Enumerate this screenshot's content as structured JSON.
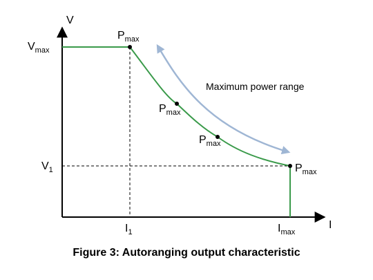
{
  "axes": {
    "y_label": "V",
    "x_label": "I",
    "v_max": {
      "main": "V",
      "sub": "max"
    },
    "v1": {
      "main": "V",
      "sub": "1"
    },
    "i1": {
      "main": "I",
      "sub": "1"
    },
    "i_max": {
      "main": "I",
      "sub": "max"
    }
  },
  "points": [
    {
      "main": "P",
      "sub": "max"
    },
    {
      "main": "P",
      "sub": "max"
    },
    {
      "main": "P",
      "sub": "max"
    },
    {
      "main": "P",
      "sub": "max"
    }
  ],
  "range_label": "Maximum power range",
  "caption": "Figure 3: Autoranging output characteristic",
  "colors": {
    "curve": "#3a9a4a",
    "arrow": "#9fb6d4",
    "axis": "#000000"
  }
}
